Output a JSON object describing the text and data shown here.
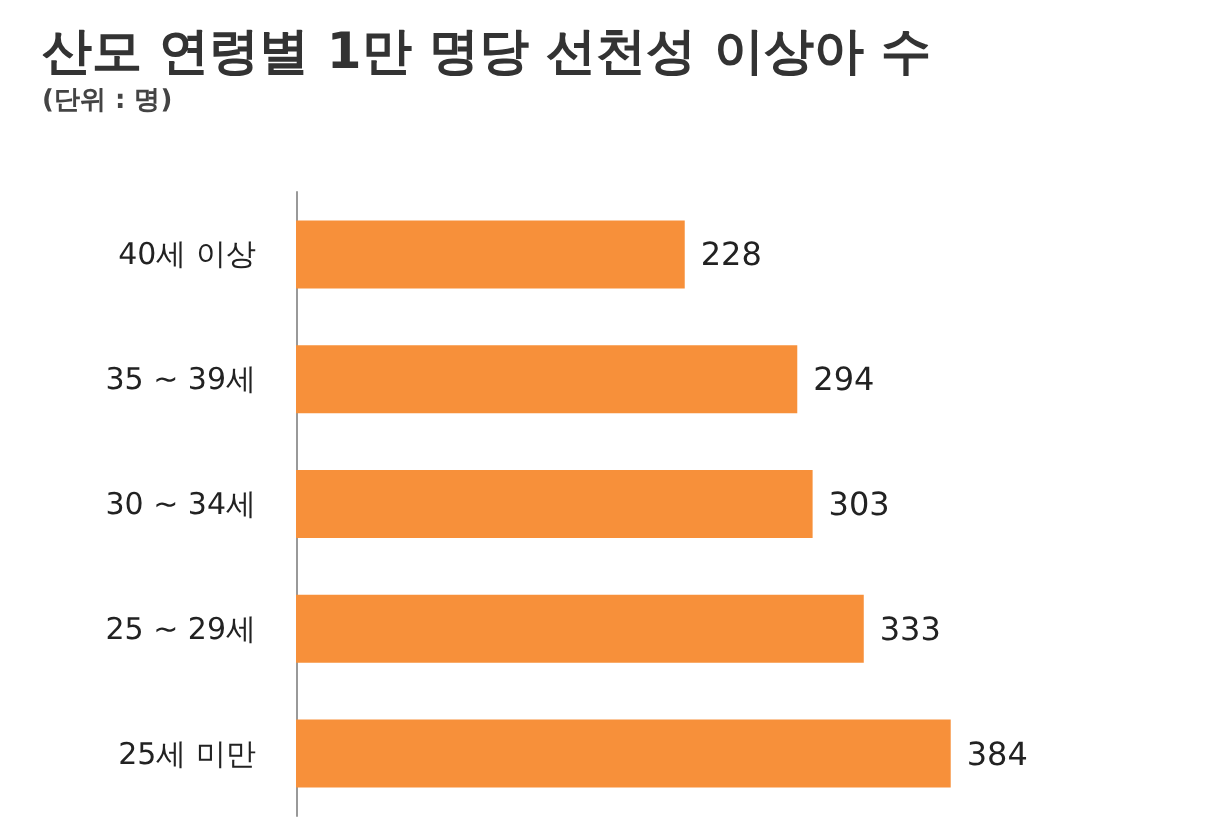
{
  "chart_data": {
    "type": "bar",
    "orientation": "horizontal",
    "title": "산모 연령별 1만 명당 선천성 이상아 수",
    "subtitle": "(단위 : 명)",
    "categories": [
      "40세 이상",
      "35 ~ 39세",
      "30 ~ 34세",
      "25 ~ 29세",
      "25세 미만"
    ],
    "values": [
      228,
      294,
      303,
      333,
      384
    ],
    "color": "#f7903a",
    "data_labels": true
  }
}
